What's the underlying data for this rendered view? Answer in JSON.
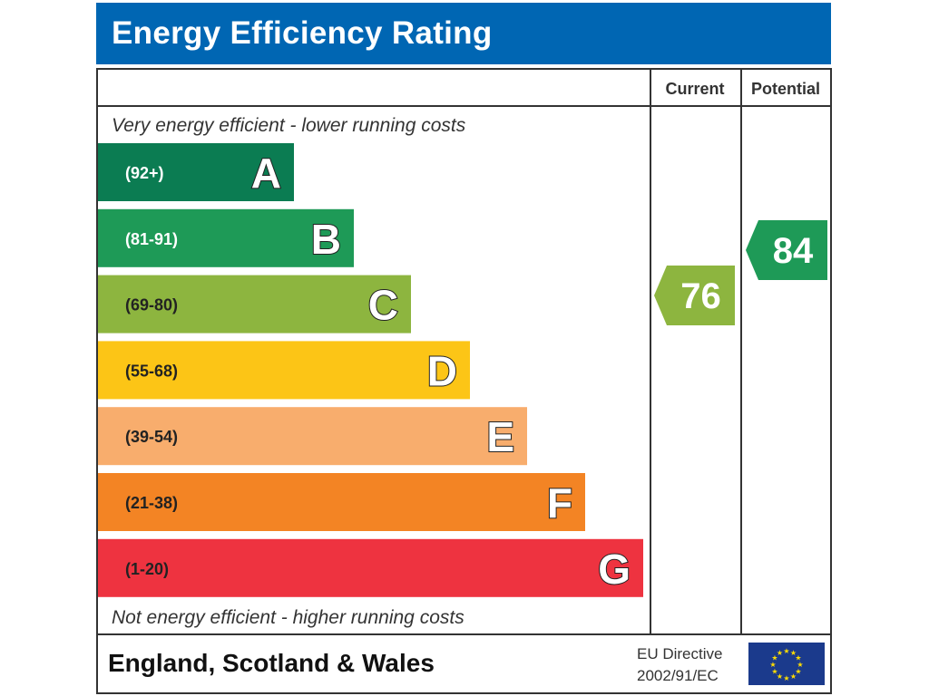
{
  "title": "Energy Efficiency Rating",
  "chart_data": {
    "type": "bar",
    "columns": {
      "current": "Current",
      "potential": "Potential"
    },
    "top_note": "Very energy efficient - lower running costs",
    "bottom_note": "Not energy efficient - higher running costs",
    "bands": [
      {
        "letter": "A",
        "range": "(92+)",
        "color": "#0b7c52"
      },
      {
        "letter": "B",
        "range": "(81-91)",
        "color": "#1e9a57"
      },
      {
        "letter": "C",
        "range": "(69-80)",
        "color": "#8db53f"
      },
      {
        "letter": "D",
        "range": "(55-68)",
        "color": "#fcc516"
      },
      {
        "letter": "E",
        "range": "(39-54)",
        "color": "#f8ad6d"
      },
      {
        "letter": "F",
        "range": "(21-38)",
        "color": "#f38424"
      },
      {
        "letter": "G",
        "range": "(1-20)",
        "color": "#ee3340"
      }
    ],
    "current": {
      "value": 76,
      "band": "C",
      "color": "#8db53f"
    },
    "potential": {
      "value": 84,
      "band": "B",
      "color": "#1e9a57"
    }
  },
  "footer": {
    "region": "England, Scotland & Wales",
    "directive_line1": "EU Directive",
    "directive_line2": "2002/91/EC",
    "eu_flag_color": "#1b3a8c",
    "eu_star_color": "#ffdd00"
  }
}
